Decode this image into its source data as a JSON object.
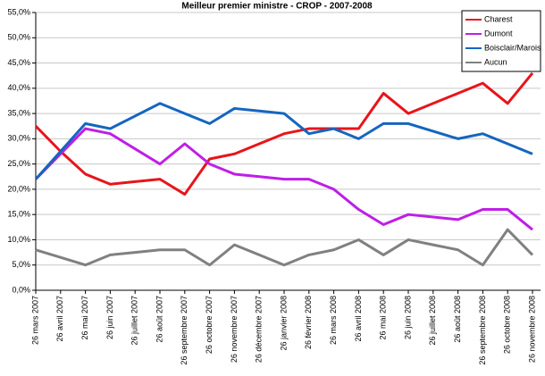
{
  "chart_data": {
    "type": "line",
    "title": "Meilleur premier ministre - CROP  - 2007-2008",
    "categories": [
      "26 mars 2007",
      "26 avril 2007",
      "26 mai 2007",
      "26 juin 2007",
      "26 juillet 2007",
      "26 août 2007",
      "26 septembre 2007",
      "26 octobre 2007",
      "26 novembre 2007",
      "26 décembre 2007",
      "26 janvier 2008",
      "26 février 2008",
      "26 mars 2008",
      "26 avril 2008",
      "26 mai 2008",
      "26 juin 2008",
      "26 juillet 2008",
      "26 août 2008",
      "26 septembre 2008",
      "26 octobre 2008",
      "26 novembre 2008"
    ],
    "series": [
      {
        "name": "Charest",
        "color": "#e8141c",
        "values": [
          32.5,
          27.5,
          23,
          21,
          21.5,
          22,
          19,
          26,
          27,
          29,
          31,
          32,
          32,
          32,
          39,
          35,
          37,
          39,
          41,
          37,
          43
        ]
      },
      {
        "name": "Dumont",
        "color": "#bf1ee6",
        "values": [
          22,
          27,
          32,
          31,
          28,
          25,
          29,
          25,
          23,
          22.5,
          22,
          22,
          20,
          16,
          13,
          15,
          14.5,
          14,
          16,
          16,
          12
        ]
      },
      {
        "name": "Boisclair/Marois",
        "color": "#1565c0",
        "values": [
          22,
          27.5,
          33,
          32,
          34.5,
          37,
          35,
          33,
          36,
          35.5,
          35,
          31,
          32,
          30,
          33,
          33,
          31.5,
          30,
          31,
          29,
          27
        ]
      },
      {
        "name": "Aucun",
        "color": "#808080",
        "values": [
          8,
          6.5,
          5,
          7,
          7.5,
          8,
          8,
          5,
          9,
          7,
          5,
          7,
          8,
          10,
          7,
          10,
          9,
          8,
          5,
          12,
          7
        ]
      }
    ],
    "ylim": [
      0,
      55
    ],
    "yticks": [
      {
        "value": 0,
        "label": "0,0%"
      },
      {
        "value": 5,
        "label": "5,0%"
      },
      {
        "value": 10,
        "label": "10,0%"
      },
      {
        "value": 15,
        "label": "15,0%"
      },
      {
        "value": 20,
        "label": "20,0%"
      },
      {
        "value": 25,
        "label": "25,0%"
      },
      {
        "value": 30,
        "label": "30,0%"
      },
      {
        "value": 35,
        "label": "35,0%"
      },
      {
        "value": 40,
        "label": "40,0%"
      },
      {
        "value": 45,
        "label": "45,0%"
      },
      {
        "value": 50,
        "label": "50,0%"
      },
      {
        "value": 55,
        "label": "55,0%"
      }
    ],
    "grid": true,
    "legend": "top-right"
  }
}
